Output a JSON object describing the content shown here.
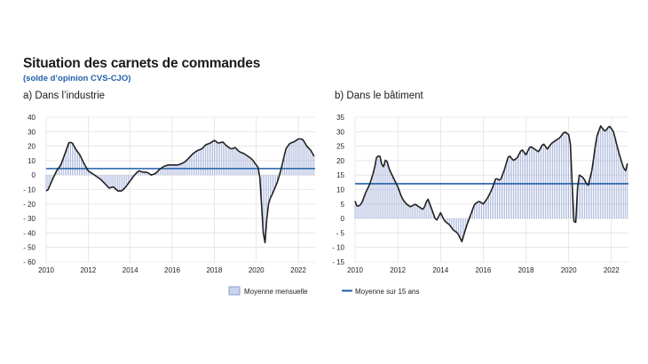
{
  "title": "Situation des carnets de commandes",
  "subtitle": "(solde d’opinion CVS-CJO)",
  "colors": {
    "bar_fill": "#c9d3ec",
    "bar_edge": "#8c9cd0",
    "line": "#222222",
    "mean_line": "#1f5fa8",
    "grid": "#d9d9d9"
  },
  "legend": {
    "bars": "Moyenne mensuelle",
    "mean": "Moyenne sur 15 ans"
  },
  "chart_data": [
    {
      "type": "bar",
      "label": "a)  Dans l’industrie",
      "xlim": [
        2010,
        2022.8
      ],
      "x_ticks": [
        "2010",
        "2012",
        "2014",
        "2016",
        "2018",
        "2020",
        "2022"
      ],
      "ylim": [
        -60,
        40
      ],
      "y_ticks": [
        "40",
        "30",
        "20",
        "10",
        "0",
        "- 10",
        "- 20",
        "- 30",
        "- 40",
        "- 50",
        "- 60"
      ],
      "mean_15y": 4.5,
      "series_keypoints": [
        [
          2010.0,
          -11
        ],
        [
          2010.1,
          -10
        ],
        [
          2010.3,
          -3
        ],
        [
          2010.5,
          3
        ],
        [
          2010.7,
          7
        ],
        [
          2010.9,
          15
        ],
        [
          2011.1,
          23
        ],
        [
          2011.25,
          22
        ],
        [
          2011.4,
          18
        ],
        [
          2011.6,
          14
        ],
        [
          2011.8,
          8
        ],
        [
          2012.0,
          3
        ],
        [
          2012.3,
          0
        ],
        [
          2012.6,
          -3
        ],
        [
          2012.8,
          -6
        ],
        [
          2013.0,
          -9
        ],
        [
          2013.2,
          -8
        ],
        [
          2013.4,
          -11
        ],
        [
          2013.6,
          -11
        ],
        [
          2013.8,
          -8
        ],
        [
          2014.0,
          -4
        ],
        [
          2014.2,
          0
        ],
        [
          2014.4,
          3
        ],
        [
          2014.6,
          2
        ],
        [
          2014.8,
          2
        ],
        [
          2015.0,
          0
        ],
        [
          2015.2,
          1
        ],
        [
          2015.4,
          4
        ],
        [
          2015.6,
          6
        ],
        [
          2015.8,
          7
        ],
        [
          2016.0,
          7
        ],
        [
          2016.3,
          7
        ],
        [
          2016.6,
          9
        ],
        [
          2016.8,
          12
        ],
        [
          2017.0,
          15
        ],
        [
          2017.2,
          17
        ],
        [
          2017.4,
          18
        ],
        [
          2017.6,
          21
        ],
        [
          2017.8,
          22
        ],
        [
          2018.0,
          24
        ],
        [
          2018.2,
          22
        ],
        [
          2018.4,
          23
        ],
        [
          2018.6,
          20
        ],
        [
          2018.8,
          18
        ],
        [
          2019.0,
          19
        ],
        [
          2019.2,
          16
        ],
        [
          2019.4,
          15
        ],
        [
          2019.6,
          13
        ],
        [
          2019.8,
          11
        ],
        [
          2020.0,
          7
        ],
        [
          2020.1,
          5
        ],
        [
          2020.2,
          -5
        ],
        [
          2020.3,
          -35
        ],
        [
          2020.4,
          -50
        ],
        [
          2020.5,
          -30
        ],
        [
          2020.6,
          -18
        ],
        [
          2020.8,
          -12
        ],
        [
          2021.0,
          -5
        ],
        [
          2021.2,
          5
        ],
        [
          2021.4,
          18
        ],
        [
          2021.6,
          22
        ],
        [
          2021.8,
          23
        ],
        [
          2022.0,
          25
        ],
        [
          2022.2,
          25
        ],
        [
          2022.4,
          20
        ],
        [
          2022.6,
          17
        ],
        [
          2022.75,
          13
        ]
      ]
    },
    {
      "type": "bar",
      "label": "b)  Dans le bâtiment",
      "xlim": [
        2010,
        2022.8
      ],
      "x_ticks": [
        "2010",
        "2012",
        "2014",
        "2016",
        "2018",
        "2020",
        "2022"
      ],
      "ylim": [
        -15,
        35
      ],
      "y_ticks": [
        "35",
        "30",
        "25",
        "20",
        "15",
        "10",
        "5",
        "0",
        "- 5",
        "- 10",
        "- 15"
      ],
      "mean_15y": 12,
      "series_keypoints": [
        [
          2010.0,
          6
        ],
        [
          2010.1,
          4
        ],
        [
          2010.3,
          5
        ],
        [
          2010.5,
          9
        ],
        [
          2010.7,
          12
        ],
        [
          2010.9,
          17
        ],
        [
          2011.0,
          21
        ],
        [
          2011.15,
          22
        ],
        [
          2011.3,
          17
        ],
        [
          2011.45,
          21
        ],
        [
          2011.6,
          17
        ],
        [
          2011.8,
          14
        ],
        [
          2012.0,
          11
        ],
        [
          2012.2,
          7
        ],
        [
          2012.4,
          5
        ],
        [
          2012.6,
          4
        ],
        [
          2012.8,
          5
        ],
        [
          2013.0,
          4
        ],
        [
          2013.2,
          3
        ],
        [
          2013.4,
          7
        ],
        [
          2013.6,
          3
        ],
        [
          2013.8,
          -1
        ],
        [
          2014.0,
          2
        ],
        [
          2014.2,
          -1
        ],
        [
          2014.4,
          -2
        ],
        [
          2014.6,
          -4
        ],
        [
          2014.8,
          -5
        ],
        [
          2015.0,
          -8
        ],
        [
          2015.2,
          -3
        ],
        [
          2015.4,
          1
        ],
        [
          2015.6,
          5
        ],
        [
          2015.8,
          6
        ],
        [
          2016.0,
          5
        ],
        [
          2016.2,
          7
        ],
        [
          2016.4,
          10
        ],
        [
          2016.6,
          14
        ],
        [
          2016.8,
          13
        ],
        [
          2017.0,
          17
        ],
        [
          2017.2,
          22
        ],
        [
          2017.4,
          20
        ],
        [
          2017.6,
          21
        ],
        [
          2017.8,
          24
        ],
        [
          2018.0,
          22
        ],
        [
          2018.2,
          25
        ],
        [
          2018.4,
          24
        ],
        [
          2018.6,
          23
        ],
        [
          2018.8,
          26
        ],
        [
          2019.0,
          24
        ],
        [
          2019.2,
          26
        ],
        [
          2019.4,
          27
        ],
        [
          2019.6,
          28
        ],
        [
          2019.8,
          30
        ],
        [
          2020.0,
          29
        ],
        [
          2020.1,
          25
        ],
        [
          2020.2,
          5
        ],
        [
          2020.3,
          -7
        ],
        [
          2020.4,
          10
        ],
        [
          2020.5,
          15
        ],
        [
          2020.7,
          14
        ],
        [
          2020.9,
          11
        ],
        [
          2021.1,
          17
        ],
        [
          2021.3,
          28
        ],
        [
          2021.5,
          32
        ],
        [
          2021.7,
          30
        ],
        [
          2021.9,
          32
        ],
        [
          2022.1,
          30
        ],
        [
          2022.3,
          24
        ],
        [
          2022.5,
          19
        ],
        [
          2022.65,
          16
        ],
        [
          2022.75,
          19
        ]
      ]
    }
  ]
}
